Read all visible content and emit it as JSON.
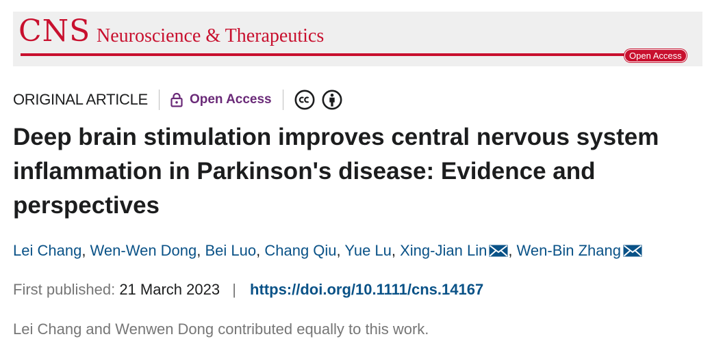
{
  "banner": {
    "abbrev": "CNS",
    "journal_name": "Neuroscience & Therapeutics",
    "badge": "Open Access",
    "color": "#c8102e"
  },
  "meta": {
    "article_type": "ORIGINAL ARTICLE",
    "open_access": "Open Access",
    "icons": [
      "lock-icon",
      "cc-icon",
      "attribution-icon"
    ],
    "accent": "#6a2a78"
  },
  "title": "Deep brain stimulation improves central nervous system inflammation in Parkinson's disease: Evidence and perspectives",
  "authors": [
    {
      "name": "Lei Chang",
      "sep": ", "
    },
    {
      "name": "Wen-Wen Dong",
      "sep": ", "
    },
    {
      "name": "Bei Luo",
      "sep": ", "
    },
    {
      "name": "Chang Qiu",
      "sep": ", "
    },
    {
      "name": "Yue Lu",
      "sep": ", "
    },
    {
      "name": "Xing-Jian Lin",
      "sep": ", "
    },
    {
      "name": "Wen-Bin Zhang",
      "sep": ""
    }
  ],
  "publication": {
    "label": "First published:",
    "date": "21 March 2023",
    "separator": "|",
    "doi": "https://doi.org/10.1111/cns.14167"
  },
  "note": "Lei Chang and Wenwen Dong contributed equally to this work.",
  "link_color": "#0a5287"
}
